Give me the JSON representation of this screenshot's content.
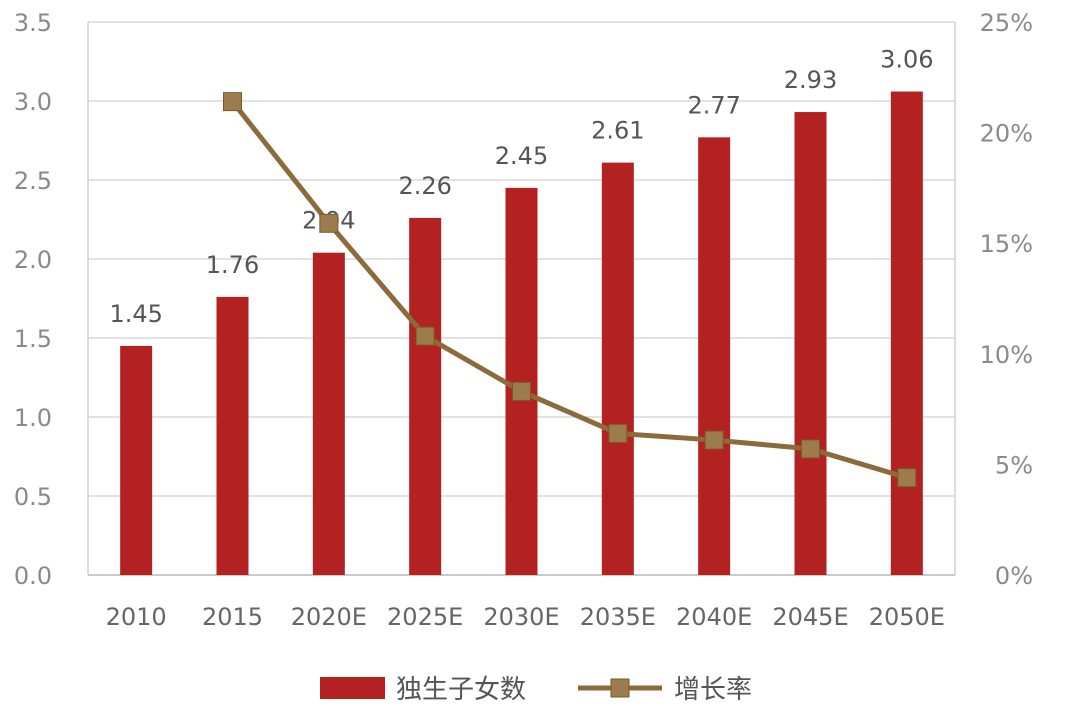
{
  "chart_data": {
    "type": "bar",
    "categories": [
      "2010",
      "2015",
      "2020E",
      "2025E",
      "2030E",
      "2035E",
      "2040E",
      "2045E",
      "2050E"
    ],
    "series": [
      {
        "name": "独生子女数",
        "type": "bar",
        "axis": "left",
        "color": "#b42121",
        "values": [
          1.45,
          1.76,
          2.04,
          2.26,
          2.45,
          2.61,
          2.77,
          2.93,
          3.06
        ],
        "labels": [
          "1.45",
          "1.76",
          "2.04",
          "2.26",
          "2.45",
          "2.61",
          "2.77",
          "2.93",
          "3.06"
        ]
      },
      {
        "name": "增长率",
        "type": "line",
        "axis": "right",
        "color": "#8c6a3a",
        "marker_color": "#9c7c4c",
        "values": [
          null,
          21.4,
          15.9,
          10.8,
          8.3,
          6.4,
          6.1,
          5.7,
          4.4
        ]
      }
    ],
    "y_left": {
      "ylim": [
        0,
        3.5
      ],
      "ticks": [
        "0.0",
        "0.5",
        "1.0",
        "1.5",
        "2.0",
        "2.5",
        "3.0",
        "3.5"
      ]
    },
    "y_right": {
      "ylim": [
        0,
        25
      ],
      "ticks": [
        "0%",
        "5%",
        "10%",
        "15%",
        "20%",
        "25%"
      ]
    },
    "grid": true,
    "legend": "bottom"
  }
}
